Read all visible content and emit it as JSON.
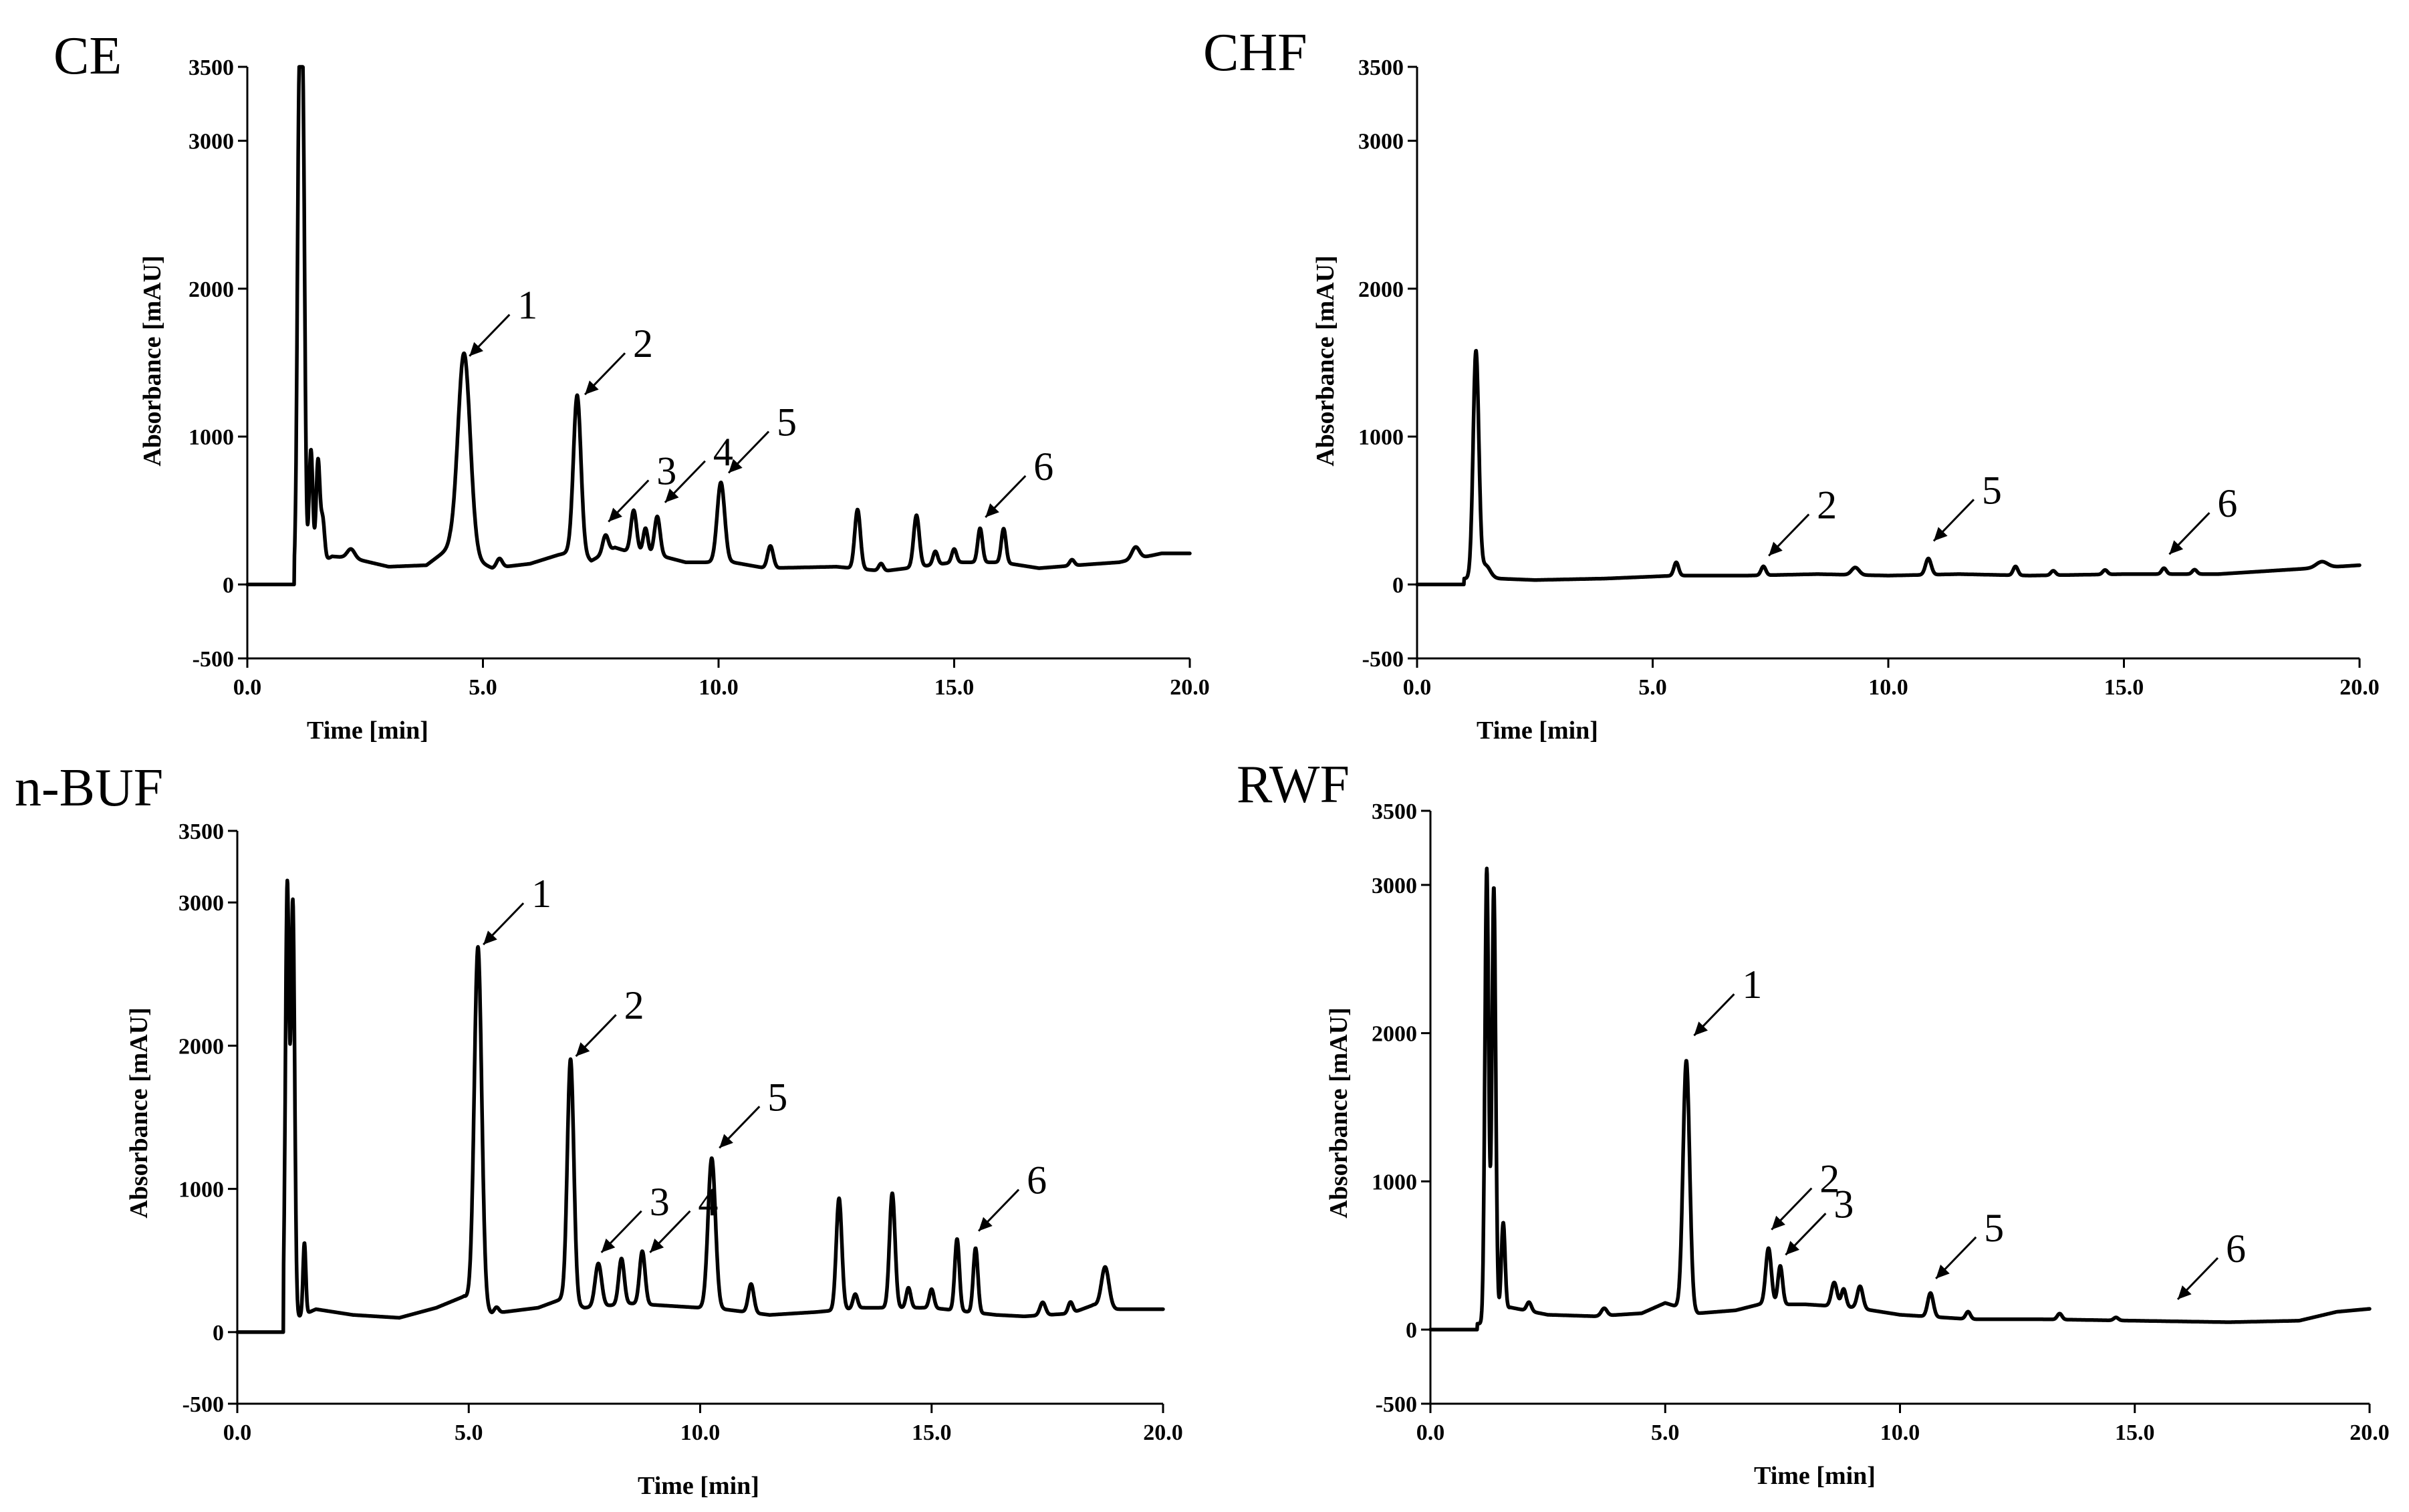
{
  "chart_data": [
    {
      "type": "line",
      "title": "CE",
      "xlabel": "Time [min]",
      "ylabel": "Absorbance [mAU]",
      "xlim": [
        0,
        20
      ],
      "ylim": [
        -500,
        3500
      ],
      "xticks": [
        "0.0",
        "5.0",
        "10.0",
        "15.0",
        "20.0"
      ],
      "yticks": [
        "-500",
        "0",
        "1000",
        "2000",
        "3000",
        "3500"
      ],
      "baseline": [
        [
          1.05,
          60
        ],
        [
          1.8,
          190
        ],
        [
          2.2,
          180
        ],
        [
          3.0,
          120
        ],
        [
          3.8,
          130
        ],
        [
          4.3,
          250
        ],
        [
          5.2,
          110
        ],
        [
          6.0,
          140
        ],
        [
          6.6,
          200
        ],
        [
          7.0,
          230
        ],
        [
          7.3,
          160
        ],
        [
          7.8,
          250
        ],
        [
          8.0,
          230
        ],
        [
          8.7,
          200
        ],
        [
          9.3,
          150
        ],
        [
          10.3,
          150
        ],
        [
          11.0,
          110
        ],
        [
          12.5,
          120
        ],
        [
          13.5,
          90
        ],
        [
          15.0,
          150
        ],
        [
          16.0,
          150
        ],
        [
          16.8,
          110
        ],
        [
          17.6,
          130
        ],
        [
          18.5,
          150
        ],
        [
          19.4,
          210
        ],
        [
          20.0,
          210
        ]
      ],
      "peaks": [
        [
          1.1,
          3070,
          0.04
        ],
        [
          1.18,
          3000,
          0.04
        ],
        [
          1.35,
          800,
          0.04
        ],
        [
          1.5,
          700,
          0.04
        ],
        [
          1.6,
          280,
          0.04
        ],
        [
          2.2,
          60,
          0.08
        ],
        [
          4.6,
          1360,
          0.13
        ],
        [
          5.35,
          60,
          0.06
        ],
        [
          7.0,
          1050,
          0.08
        ],
        [
          7.6,
          120,
          0.06
        ],
        [
          8.2,
          280,
          0.06
        ],
        [
          8.45,
          170,
          0.05
        ],
        [
          8.7,
          260,
          0.06
        ],
        [
          10.05,
          540,
          0.08
        ],
        [
          11.1,
          150,
          0.06
        ],
        [
          12.95,
          400,
          0.06
        ],
        [
          13.45,
          50,
          0.05
        ],
        [
          14.2,
          350,
          0.06
        ],
        [
          14.6,
          90,
          0.05
        ],
        [
          15.0,
          90,
          0.05
        ],
        [
          15.55,
          230,
          0.05
        ],
        [
          16.05,
          230,
          0.05
        ],
        [
          17.5,
          40,
          0.05
        ],
        [
          18.85,
          80,
          0.08
        ]
      ],
      "annotations": [
        {
          "label": "1",
          "x": 4.6,
          "y": 1490
        },
        {
          "label": "2",
          "x": 7.05,
          "y": 1230
        },
        {
          "label": "3",
          "x": 7.55,
          "y": 370
        },
        {
          "label": "4",
          "x": 8.75,
          "y": 500
        },
        {
          "label": "5",
          "x": 10.1,
          "y": 700
        },
        {
          "label": "6",
          "x": 15.55,
          "y": 400
        }
      ]
    },
    {
      "type": "line",
      "title": "CHF",
      "xlabel": "Time [min]",
      "ylabel": "Absorbance [mAU]",
      "xlim": [
        0,
        20
      ],
      "ylim": [
        -500,
        3500
      ],
      "xticks": [
        "0.0",
        "5.0",
        "10.0",
        "15.0",
        "20.0"
      ],
      "yticks": [
        "-500",
        "0",
        "1000",
        "2000",
        "3000",
        "3500"
      ],
      "baseline": [
        [
          1.1,
          40
        ],
        [
          1.7,
          40
        ],
        [
          2.5,
          30
        ],
        [
          4.0,
          40
        ],
        [
          5.5,
          60
        ],
        [
          7.0,
          60
        ],
        [
          8.5,
          70
        ],
        [
          10.0,
          60
        ],
        [
          11.5,
          70
        ],
        [
          13.0,
          60
        ],
        [
          15.0,
          70
        ],
        [
          17.0,
          70
        ],
        [
          18.5,
          100
        ],
        [
          20.0,
          130
        ]
      ],
      "peaks": [
        [
          1.25,
          1530,
          0.06
        ],
        [
          1.45,
          90,
          0.1
        ],
        [
          5.5,
          90,
          0.05
        ],
        [
          7.35,
          60,
          0.05
        ],
        [
          9.3,
          50,
          0.08
        ],
        [
          10.85,
          110,
          0.06
        ],
        [
          12.7,
          60,
          0.05
        ],
        [
          13.5,
          30,
          0.05
        ],
        [
          14.6,
          30,
          0.05
        ],
        [
          15.85,
          40,
          0.05
        ],
        [
          16.5,
          30,
          0.05
        ],
        [
          19.2,
          40,
          0.12
        ]
      ],
      "annotations": [
        {
          "label": "2",
          "x": 7.35,
          "y": 140
        },
        {
          "label": "5",
          "x": 10.85,
          "y": 240
        },
        {
          "label": "6",
          "x": 15.85,
          "y": 150
        }
      ]
    },
    {
      "type": "line",
      "title": "n-BUF",
      "xlabel": "Time [min]",
      "ylabel": "Absorbance [mAU]",
      "xlim": [
        0,
        20
      ],
      "ylim": [
        -500,
        3500
      ],
      "xticks": [
        "0.0",
        "5.0",
        "10.0",
        "15.0",
        "20.0"
      ],
      "yticks": [
        "-500",
        "0",
        "1000",
        "2000",
        "3000",
        "3500"
      ],
      "baseline": [
        [
          1.0,
          60
        ],
        [
          1.7,
          160
        ],
        [
          2.5,
          120
        ],
        [
          3.5,
          100
        ],
        [
          4.3,
          170
        ],
        [
          4.9,
          250
        ],
        [
          5.5,
          130
        ],
        [
          6.5,
          170
        ],
        [
          7.0,
          230
        ],
        [
          7.5,
          170
        ],
        [
          8.5,
          200
        ],
        [
          9.5,
          180
        ],
        [
          10.5,
          160
        ],
        [
          11.5,
          120
        ],
        [
          12.5,
          140
        ],
        [
          13.5,
          170
        ],
        [
          15.0,
          170
        ],
        [
          16.4,
          120
        ],
        [
          17.0,
          110
        ],
        [
          18.0,
          130
        ],
        [
          18.5,
          190
        ],
        [
          19.0,
          160
        ],
        [
          20.0,
          160
        ]
      ],
      "peaks": [
        [
          1.08,
          3050,
          0.04
        ],
        [
          1.2,
          2900,
          0.04
        ],
        [
          1.45,
          500,
          0.03
        ],
        [
          5.2,
          2500,
          0.08
        ],
        [
          5.6,
          40,
          0.05
        ],
        [
          7.2,
          1700,
          0.07
        ],
        [
          7.8,
          300,
          0.07
        ],
        [
          8.3,
          320,
          0.06
        ],
        [
          8.75,
          370,
          0.06
        ],
        [
          10.25,
          1050,
          0.08
        ],
        [
          11.1,
          200,
          0.06
        ],
        [
          13.0,
          780,
          0.06
        ],
        [
          13.35,
          100,
          0.05
        ],
        [
          14.15,
          800,
          0.06
        ],
        [
          14.5,
          140,
          0.05
        ],
        [
          15.0,
          130,
          0.05
        ],
        [
          15.55,
          500,
          0.05
        ],
        [
          15.95,
          450,
          0.05
        ],
        [
          17.4,
          90,
          0.06
        ],
        [
          18.0,
          80,
          0.05
        ],
        [
          18.75,
          280,
          0.08
        ]
      ],
      "annotations": [
        {
          "label": "1",
          "x": 5.2,
          "y": 2650
        },
        {
          "label": "2",
          "x": 7.2,
          "y": 1870
        },
        {
          "label": "3",
          "x": 7.75,
          "y": 500
        },
        {
          "label": "4",
          "x": 8.8,
          "y": 500
        },
        {
          "label": "5",
          "x": 10.3,
          "y": 1230
        },
        {
          "label": "6",
          "x": 15.9,
          "y": 650
        }
      ]
    },
    {
      "type": "line",
      "title": "RWF",
      "xlabel": "Time [min]",
      "ylabel": "Absorbance [mAU]",
      "xlim": [
        0,
        20
      ],
      "ylim": [
        -500,
        3500
      ],
      "xticks": [
        "0.0",
        "5.0",
        "10.0",
        "15.0",
        "20.0"
      ],
      "yticks": [
        "-500",
        "0",
        "1000",
        "2000",
        "3000",
        "3500"
      ],
      "baseline": [
        [
          1.1,
          40
        ],
        [
          1.7,
          150
        ],
        [
          2.5,
          100
        ],
        [
          3.5,
          90
        ],
        [
          4.5,
          110
        ],
        [
          5.0,
          180
        ],
        [
          5.7,
          110
        ],
        [
          6.5,
          130
        ],
        [
          7.0,
          170
        ],
        [
          8.0,
          170
        ],
        [
          9.0,
          150
        ],
        [
          10.0,
          100
        ],
        [
          11.5,
          70
        ],
        [
          13.0,
          70
        ],
        [
          15.0,
          60
        ],
        [
          17.0,
          50
        ],
        [
          18.5,
          60
        ],
        [
          19.3,
          120
        ],
        [
          20.0,
          140
        ]
      ],
      "peaks": [
        [
          1.2,
          3050,
          0.04
        ],
        [
          1.35,
          2900,
          0.04
        ],
        [
          1.55,
          600,
          0.04
        ],
        [
          2.1,
          60,
          0.05
        ],
        [
          3.7,
          50,
          0.06
        ],
        [
          5.45,
          1680,
          0.07
        ],
        [
          7.2,
          380,
          0.06
        ],
        [
          7.45,
          260,
          0.05
        ],
        [
          8.6,
          160,
          0.06
        ],
        [
          8.8,
          120,
          0.05
        ],
        [
          9.15,
          150,
          0.06
        ],
        [
          10.65,
          160,
          0.06
        ],
        [
          11.45,
          50,
          0.05
        ],
        [
          13.4,
          40,
          0.05
        ],
        [
          14.6,
          20,
          0.05
        ]
      ],
      "annotations": [
        {
          "label": "1",
          "x": 5.5,
          "y": 1930
        },
        {
          "label": "2",
          "x": 7.15,
          "y": 620
        },
        {
          "label": "3",
          "x": 7.45,
          "y": 450
        },
        {
          "label": "5",
          "x": 10.65,
          "y": 290
        },
        {
          "label": "6",
          "x": 15.8,
          "y": 150
        }
      ]
    }
  ]
}
